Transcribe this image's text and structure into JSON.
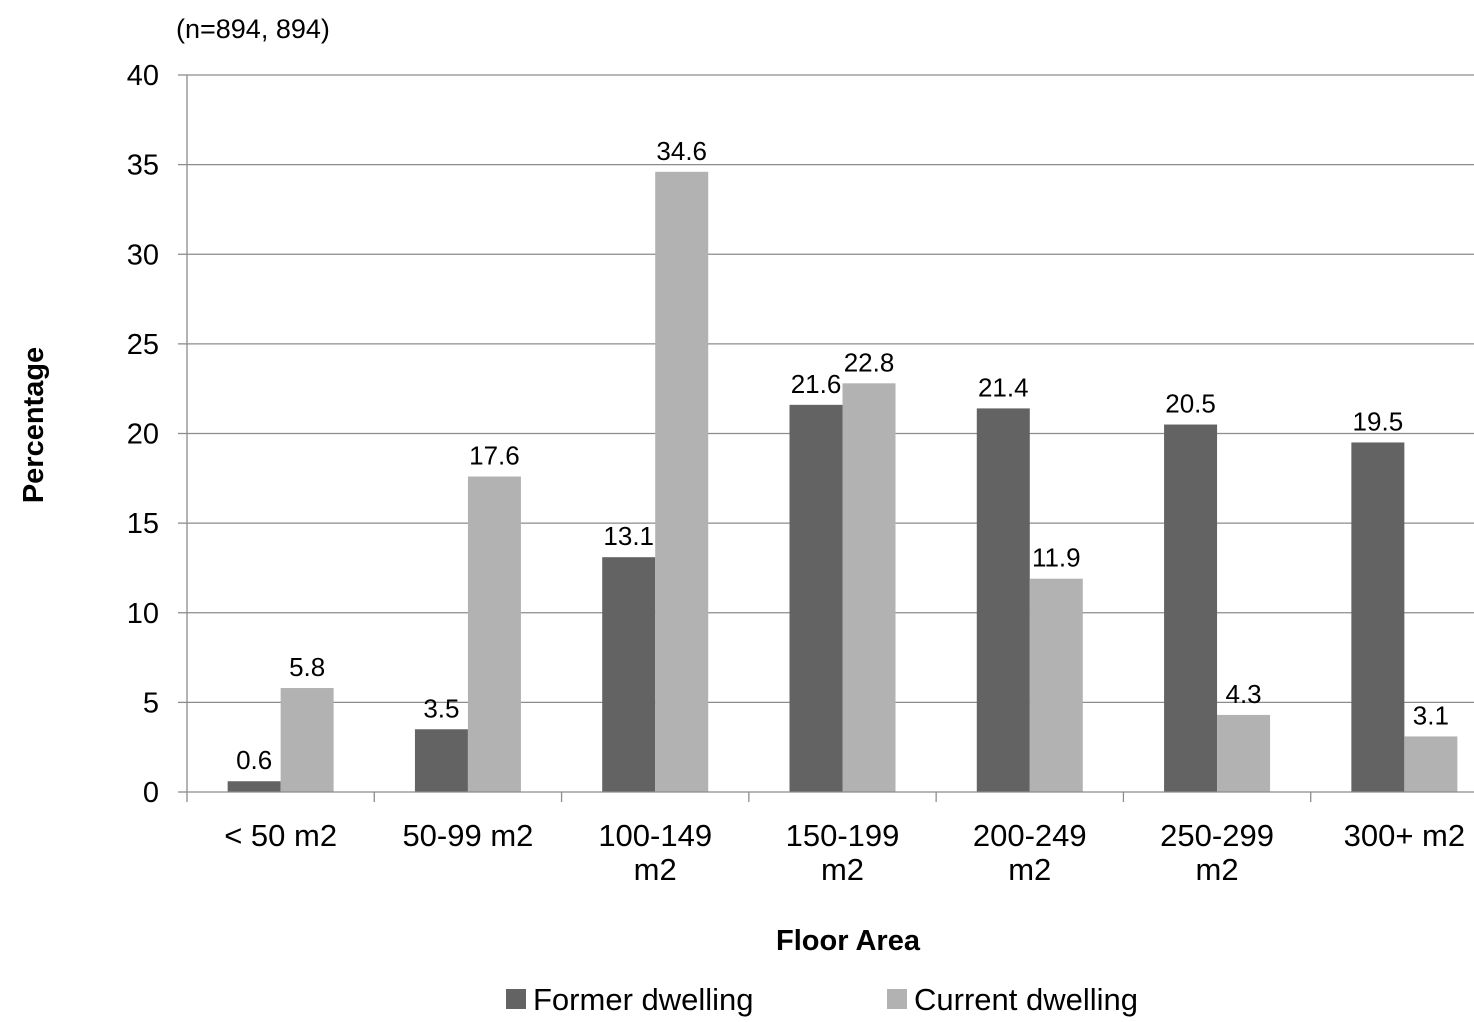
{
  "chart_data": {
    "type": "bar",
    "subtitle": "(n=894, 894)",
    "xlabel": "Floor Area",
    "ylabel": "Percentage",
    "ylim": [
      0,
      40
    ],
    "yticks": [
      0,
      5,
      10,
      15,
      20,
      25,
      30,
      35,
      40
    ],
    "grid": true,
    "legend_position": "bottom",
    "categories": [
      [
        "< 50 m2"
      ],
      [
        "50-99 m2"
      ],
      [
        "100-149",
        "m2"
      ],
      [
        "150-199",
        "m2"
      ],
      [
        "200-249",
        "m2"
      ],
      [
        "250-299",
        "m2"
      ],
      [
        "300+ m2"
      ]
    ],
    "series": [
      {
        "name": "Former dwelling",
        "color": "#636363",
        "values": [
          0.6,
          3.5,
          13.1,
          21.6,
          21.4,
          20.5,
          19.5
        ]
      },
      {
        "name": "Current dwelling",
        "color": "#b2b2b2",
        "values": [
          5.8,
          17.6,
          34.6,
          22.8,
          11.9,
          4.3,
          3.1
        ]
      }
    ]
  }
}
